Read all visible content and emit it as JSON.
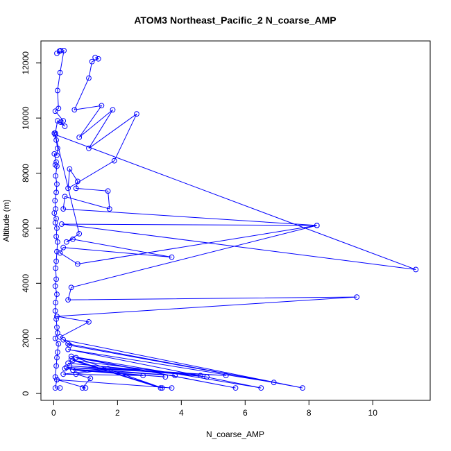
{
  "chart_data": {
    "type": "line",
    "title": "ATOM3 Northeast_Pacific_2 N_coarse_AMP",
    "xlabel": "N_coarse_AMP",
    "ylabel": "Altitude (m)",
    "xlim": [
      -0.4,
      11.8
    ],
    "ylim": [
      -250,
      12800
    ],
    "xticks": [
      0,
      2,
      4,
      6,
      8,
      10
    ],
    "yticks": [
      0,
      2000,
      4000,
      6000,
      8000,
      10000,
      12000
    ],
    "grid": false,
    "marker": "open-circle",
    "series": [
      {
        "color": "#0000ff",
        "points": [
          [
            0.22,
            12450
          ],
          [
            0.18,
            12430
          ],
          [
            0.1,
            12350
          ],
          [
            0.32,
            12450
          ],
          [
            0.2,
            11650
          ],
          [
            0.12,
            11000
          ],
          [
            0.15,
            10350
          ],
          [
            0.05,
            10250
          ],
          [
            0.3,
            9900
          ],
          [
            0.22,
            9850
          ],
          [
            0.35,
            9700
          ],
          [
            0.12,
            9900
          ],
          [
            0.05,
            9450
          ],
          [
            0.02,
            9450
          ],
          [
            0.08,
            9200
          ],
          [
            0.12,
            8900
          ],
          [
            0.1,
            8650
          ],
          [
            0.02,
            8700
          ],
          [
            0.08,
            8400
          ],
          [
            0.05,
            8300
          ],
          [
            0.1,
            8250
          ],
          [
            0.06,
            7900
          ],
          [
            0.1,
            7600
          ],
          [
            0.08,
            7300
          ],
          [
            0.04,
            7000
          ],
          [
            0.06,
            6700
          ],
          [
            0.02,
            6550
          ],
          [
            0.08,
            6350
          ],
          [
            0.05,
            6200
          ],
          [
            0.1,
            6000
          ],
          [
            0.08,
            5700
          ],
          [
            0.12,
            5500
          ],
          [
            0.1,
            5150
          ],
          [
            0.08,
            4800
          ],
          [
            0.06,
            4550
          ],
          [
            0.08,
            4150
          ],
          [
            0.05,
            3900
          ],
          [
            0.1,
            3600
          ],
          [
            0.06,
            3300
          ],
          [
            0.05,
            3000
          ],
          [
            0.08,
            2700
          ],
          [
            0.1,
            2400
          ],
          [
            0.12,
            2200
          ],
          [
            0.05,
            2000
          ],
          [
            0.15,
            1800
          ],
          [
            0.12,
            1500
          ],
          [
            0.1,
            1300
          ],
          [
            0.08,
            1000
          ],
          [
            0.05,
            600
          ],
          [
            0.1,
            500
          ],
          [
            0.05,
            200
          ],
          [
            0.2,
            200
          ]
        ]
      },
      {
        "color": "#0000ff",
        "points": [
          [
            1.3,
            12200
          ],
          [
            1.4,
            12150
          ],
          [
            1.2,
            12050
          ],
          [
            1.1,
            11450
          ],
          [
            0.65,
            10300
          ],
          [
            1.5,
            10450
          ],
          [
            0.8,
            9300
          ],
          [
            1.85,
            10300
          ],
          [
            1.1,
            8900
          ],
          [
            2.6,
            10150
          ],
          [
            1.9,
            8450
          ],
          [
            0.45,
            7450
          ],
          [
            0.5,
            8150
          ],
          [
            0.75,
            7700
          ],
          [
            0.7,
            7450
          ],
          [
            1.7,
            7350
          ],
          [
            1.75,
            6700
          ],
          [
            0.35,
            7150
          ],
          [
            0.3,
            6700
          ],
          [
            8.25,
            6100
          ],
          [
            0.25,
            6150
          ],
          [
            11.35,
            4500
          ],
          [
            0.05,
            9400
          ],
          [
            0.8,
            5800
          ],
          [
            0.4,
            5500
          ],
          [
            0.6,
            5600
          ],
          [
            3.7,
            4950
          ],
          [
            0.3,
            5300
          ],
          [
            0.2,
            5100
          ],
          [
            0.75,
            4700
          ],
          [
            8.25,
            6100
          ],
          [
            0.55,
            3850
          ],
          [
            0.45,
            3400
          ],
          [
            9.5,
            3500
          ],
          [
            0.1,
            2800
          ],
          [
            1.1,
            2600
          ],
          [
            0.2,
            2050
          ],
          [
            0.45,
            1800
          ],
          [
            7.8,
            200
          ],
          [
            0.3,
            1950
          ],
          [
            0.5,
            1750
          ],
          [
            6.9,
            400
          ],
          [
            0.45,
            1600
          ],
          [
            6.5,
            200
          ],
          [
            0.55,
            1350
          ],
          [
            5.7,
            200
          ],
          [
            0.7,
            1300
          ],
          [
            3.4,
            200
          ],
          [
            0.55,
            1250
          ],
          [
            3.35,
            200
          ],
          [
            0.6,
            1200
          ],
          [
            4.8,
            600
          ],
          [
            0.45,
            1100
          ],
          [
            4.6,
            650
          ],
          [
            0.5,
            1000
          ],
          [
            5.4,
            650
          ],
          [
            0.4,
            950
          ],
          [
            3.8,
            650
          ],
          [
            0.35,
            900
          ],
          [
            3.5,
            600
          ],
          [
            0.6,
            850
          ],
          [
            2.8,
            650
          ],
          [
            0.3,
            700
          ],
          [
            1.7,
            900
          ],
          [
            0.7,
            700
          ],
          [
            1.15,
            550
          ],
          [
            0.9,
            200
          ],
          [
            1.0,
            200
          ],
          [
            0.1,
            500
          ],
          [
            3.7,
            200
          ]
        ]
      }
    ]
  }
}
